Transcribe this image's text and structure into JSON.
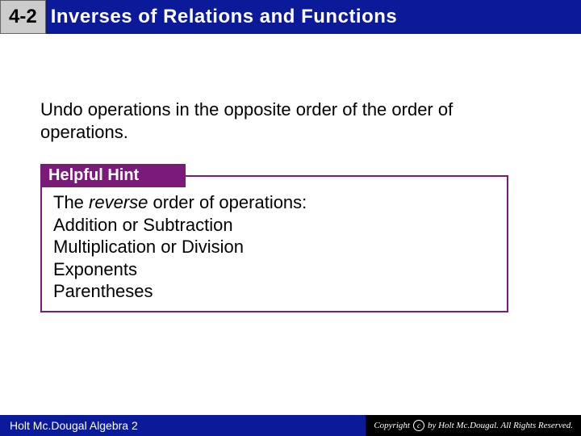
{
  "header": {
    "section_number": "4-2",
    "title": "Inverses of Relations and Functions",
    "bg_color": "#0a1a99",
    "badge_bg": "#cccccc"
  },
  "instruction": "Undo operations in the opposite order of the order of operations.",
  "hint": {
    "label": "Helpful Hint",
    "label_bg": "#7a1b7a",
    "intro_italic": "reverse",
    "intro_prefix": "The ",
    "intro_suffix": " order of operations:",
    "lines": [
      "Addition or Subtraction",
      "Multiplication or Division",
      "Exponents",
      "Parentheses"
    ]
  },
  "footer": {
    "left": "Holt Mc.Dougal Algebra 2",
    "copyright_prefix": "Copyright ",
    "copyright_suffix": " by Holt Mc.Dougal. All Rights Reserved."
  }
}
